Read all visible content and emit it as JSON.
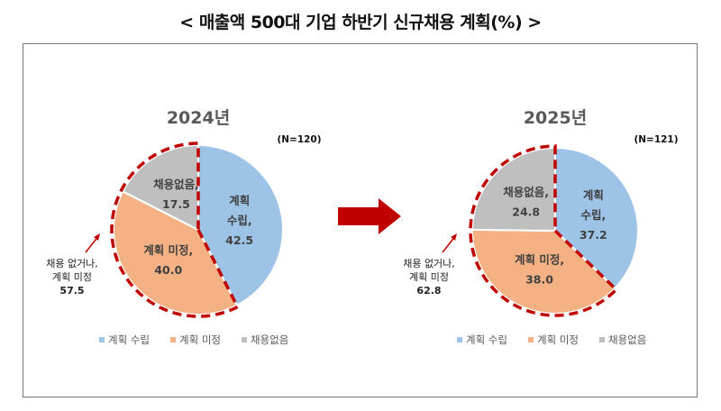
{
  "title": "< 매출액 500대 기업 하반기 신규채용 계획(%) >",
  "colors": {
    "plan": "#9DC3E6",
    "undecided": "#F4B183",
    "none": "#BFBFBF",
    "highlight": "#C00000",
    "arrow": "#C00000"
  },
  "chart_data": [
    {
      "type": "pie",
      "title": "2024년",
      "n_label": "(N=120)",
      "categories": [
        "계획 수립",
        "계획 미정",
        "채용없음"
      ],
      "values": [
        42.5,
        40.0,
        17.5
      ],
      "slice_labels": [
        [
          "계획",
          "수립,",
          "42.5"
        ],
        [
          "계획 미정,",
          "40.0"
        ],
        [
          "채용없음,",
          "17.5"
        ]
      ],
      "annotation": [
        "채용 없거나,",
        "계획 미정",
        "57.5"
      ],
      "legend": [
        "계획 수립",
        "계획 미정",
        "채용없음"
      ],
      "legend_position": "bottom"
    },
    {
      "type": "pie",
      "title": "2025년",
      "n_label": "(N=121)",
      "categories": [
        "계획 수립",
        "계획 미정",
        "채용없음"
      ],
      "values": [
        37.2,
        38.0,
        24.8
      ],
      "slice_labels": [
        [
          "계획",
          "수립,",
          "37.2"
        ],
        [
          "계획 미정,",
          "38.0"
        ],
        [
          "채용없음,",
          "24.8"
        ]
      ],
      "annotation": [
        "채용 없거나,",
        "계획 미정",
        "62.8"
      ],
      "legend": [
        "계획 수립",
        "계획 미정",
        "채용없음"
      ],
      "legend_position": "bottom"
    }
  ]
}
